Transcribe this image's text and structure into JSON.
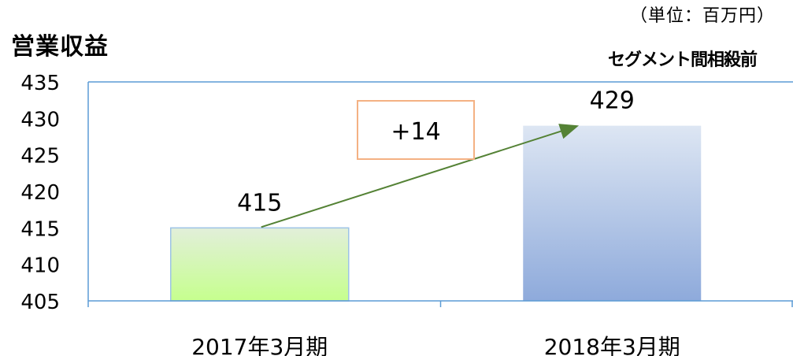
{
  "header": {
    "title": "営業収益",
    "unit": "（単位：百万円）",
    "note": "セグメント間相殺前"
  },
  "colors": {
    "axis": "#5b9bd5",
    "bar1_top": "#e2efda",
    "bar1_bottom": "#c6ff8e",
    "bar2_top": "#dde6f3",
    "bar2_bottom": "#8eaadb",
    "arrow": "#548235",
    "annotation_border": "#f4b183"
  },
  "chart_data": {
    "type": "bar",
    "categories": [
      "2017年3月期",
      "2018年3月期"
    ],
    "values": [
      415,
      429
    ],
    "data_labels": [
      "415",
      "429"
    ],
    "ylim": [
      405,
      435
    ],
    "yticks": [
      405,
      410,
      415,
      420,
      425,
      430,
      435
    ],
    "annotation": "+14",
    "grid": false,
    "legend": "none"
  }
}
